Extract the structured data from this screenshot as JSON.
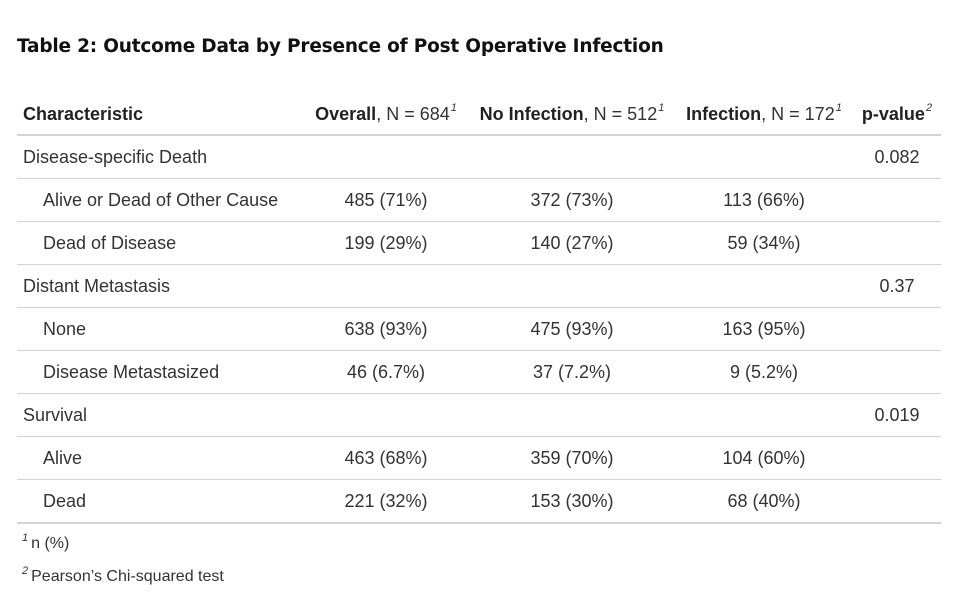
{
  "title": "Table 2: Outcome Data by Presence of Post Operative Infection",
  "header": {
    "characteristic": "Characteristic",
    "overall_bold": "Overall",
    "overall_rest": ", N = 684",
    "overall_fn": "1",
    "noinf_bold": "No Infection",
    "noinf_rest": ", N = 512",
    "noinf_fn": "1",
    "inf_bold": "Infection",
    "inf_rest": ", N = 172",
    "inf_fn": "1",
    "pvalue": "p-value",
    "pvalue_fn": "2"
  },
  "rows": [
    {
      "label": "Disease-specific Death",
      "overall": "",
      "no_infection": "",
      "infection": "",
      "p": "0.082"
    },
    {
      "label": "Alive or Dead of Other Cause",
      "overall": "485 (71%)",
      "no_infection": "372 (73%)",
      "infection": "113 (66%)",
      "p": ""
    },
    {
      "label": "Dead of Disease",
      "overall": "199 (29%)",
      "no_infection": "140 (27%)",
      "infection": "59 (34%)",
      "p": ""
    },
    {
      "label": "Distant Metastasis",
      "overall": "",
      "no_infection": "",
      "infection": "",
      "p": "0.37"
    },
    {
      "label": "None",
      "overall": "638 (93%)",
      "no_infection": "475 (93%)",
      "infection": "163 (95%)",
      "p": ""
    },
    {
      "label": "Disease Metastasized",
      "overall": "46 (6.7%)",
      "no_infection": "37 (7.2%)",
      "infection": "9 (5.2%)",
      "p": ""
    },
    {
      "label": "Survival",
      "overall": "",
      "no_infection": "",
      "infection": "",
      "p": "0.019"
    },
    {
      "label": "Alive",
      "overall": "463 (68%)",
      "no_infection": "359 (70%)",
      "infection": "104 (60%)",
      "p": ""
    },
    {
      "label": "Dead",
      "overall": "221 (32%)",
      "no_infection": "153 (30%)",
      "infection": "68 (40%)",
      "p": ""
    }
  ],
  "footnotes": [
    {
      "mark": "1",
      "text": "n (%)"
    },
    {
      "mark": "2",
      "text": "Pearson’s Chi-squared test"
    }
  ]
}
